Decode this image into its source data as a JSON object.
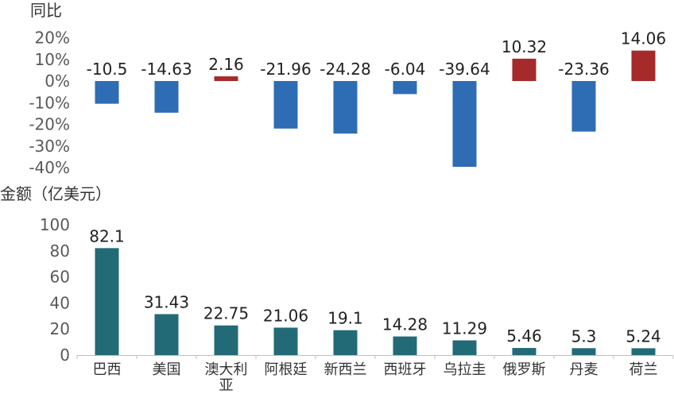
{
  "chart_data": [
    {
      "type": "bar",
      "ylabel": "同比",
      "categories": [
        "巴西",
        "美国",
        "澳大利亚",
        "阿根廷",
        "新西兰",
        "西班牙",
        "乌拉圭",
        "俄罗斯",
        "丹麦",
        "荷兰"
      ],
      "values": [
        -10.5,
        -14.63,
        2.16,
        -21.96,
        -24.28,
        -6.04,
        -39.64,
        10.32,
        -23.36,
        14.06
      ],
      "data_labels": [
        "-10.5",
        "-14.63",
        "2.16",
        "-21.96",
        "-24.28",
        "-6.04",
        "-39.64",
        "10.32",
        "-23.36",
        "14.06"
      ],
      "yticks": [
        "20%",
        "10%",
        "0%",
        "-10%",
        "-20%",
        "-30%",
        "-40%"
      ],
      "ylim": [
        -40,
        20
      ],
      "colors": {
        "negative": "#2E6DB4",
        "positive": "#A52A2A"
      },
      "grid": false
    },
    {
      "type": "bar",
      "ylabel": "金额（亿美元）",
      "categories": [
        "巴西",
        "美国",
        "澳大利亚",
        "阿根廷",
        "新西兰",
        "西班牙",
        "乌拉圭",
        "俄罗斯",
        "丹麦",
        "荷兰"
      ],
      "category_labels": [
        "巴西",
        "美国",
        "澳大利\n亚",
        "阿根廷",
        "新西兰",
        "西班牙",
        "乌拉圭",
        "俄罗斯",
        "丹麦",
        "荷兰"
      ],
      "values": [
        82.1,
        31.43,
        22.75,
        21.06,
        19.1,
        14.28,
        11.29,
        5.46,
        5.3,
        5.24
      ],
      "data_labels": [
        "82.1",
        "31.43",
        "22.75",
        "21.06",
        "19.1",
        "14.28",
        "11.29",
        "5.46",
        "5.3",
        "5.24"
      ],
      "yticks": [
        "100",
        "80",
        "60",
        "40",
        "20",
        "0"
      ],
      "ylim": [
        0,
        100
      ],
      "colors": {
        "bar": "#236A77"
      },
      "grid": false
    }
  ]
}
